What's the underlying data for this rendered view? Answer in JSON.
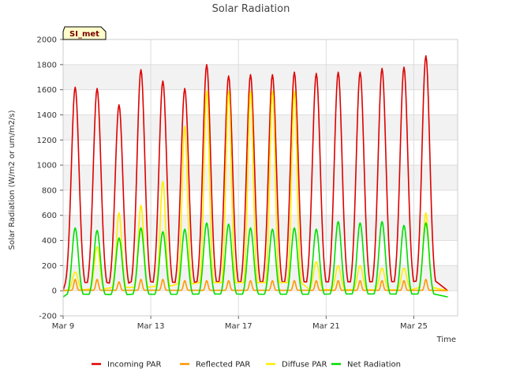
{
  "chart_data": {
    "type": "line",
    "title": "Solar Radiation",
    "xlabel": "Time",
    "ylabel": "Solar Radiation (W/m2 or um/m2/s)",
    "site_badge": "SI_met",
    "ylim": [
      -200,
      2000
    ],
    "xlim": [
      "2024-03-09",
      "2024-03-27"
    ],
    "yticks": [
      -200,
      0,
      200,
      400,
      600,
      800,
      1000,
      1200,
      1400,
      1600,
      1800,
      2000
    ],
    "xticks": [
      {
        "date": "2024-03-09",
        "label": "Mar 9"
      },
      {
        "date": "2024-03-13",
        "label": "Mar 13"
      },
      {
        "date": "2024-03-17",
        "label": "Mar 17"
      },
      {
        "date": "2024-03-21",
        "label": "Mar 21"
      },
      {
        "date": "2024-03-25",
        "label": "Mar 25"
      }
    ],
    "grid": true,
    "legend_position": "bottom",
    "days": [
      "2024-03-09",
      "2024-03-10",
      "2024-03-11",
      "2024-03-12",
      "2024-03-13",
      "2024-03-14",
      "2024-03-15",
      "2024-03-16",
      "2024-03-17",
      "2024-03-18",
      "2024-03-19",
      "2024-03-20",
      "2024-03-21",
      "2024-03-22",
      "2024-03-23",
      "2024-03-24",
      "2024-03-25",
      "2024-03-26"
    ],
    "series": [
      {
        "name": "Incoming PAR",
        "color": "#dd0000",
        "daily_peak": [
          1620,
          1610,
          1480,
          1760,
          1670,
          1610,
          1800,
          1710,
          1720,
          1720,
          1740,
          1730,
          1740,
          1740,
          1770,
          1780,
          1870,
          0
        ],
        "night_value": 0
      },
      {
        "name": "Reflected PAR",
        "color": "#ff9900",
        "daily_peak": [
          90,
          90,
          70,
          90,
          90,
          80,
          80,
          80,
          80,
          80,
          80,
          80,
          80,
          80,
          80,
          80,
          90,
          0
        ],
        "night_value": 0
      },
      {
        "name": "Diffuse PAR",
        "color": "#ffee00",
        "daily_peak": [
          150,
          350,
          620,
          680,
          870,
          1310,
          1590,
          1590,
          1590,
          1590,
          1590,
          230,
          200,
          200,
          180,
          180,
          620,
          0
        ],
        "night_value": 0
      },
      {
        "name": "Net Radiation",
        "color": "#00dd00",
        "daily_peak": [
          500,
          480,
          420,
          500,
          470,
          490,
          540,
          530,
          500,
          490,
          500,
          490,
          550,
          540,
          550,
          520,
          540,
          0
        ],
        "night_value": -50
      }
    ]
  }
}
